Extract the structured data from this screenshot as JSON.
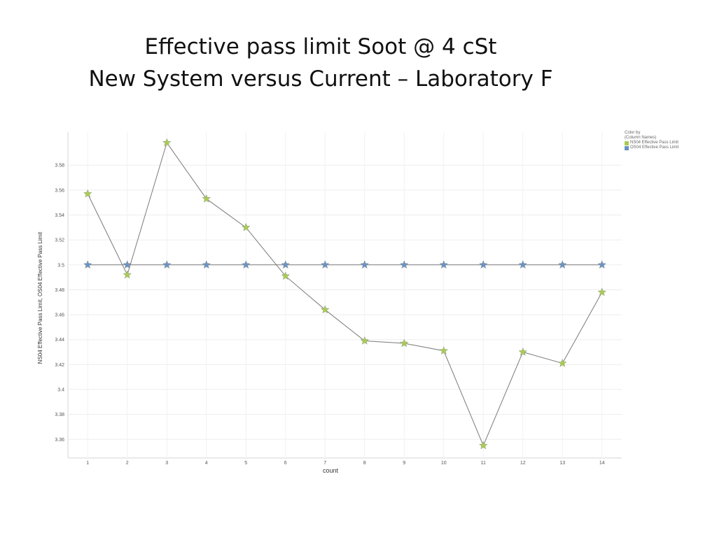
{
  "slide": {
    "title_line1": "Effective pass limit Soot @ 4 cSt",
    "title_line2": "New System versus Current – Laboratory F"
  },
  "legend": {
    "heading_line1": "Color by",
    "heading_line2": "(Column Names)"
  },
  "chart_data": {
    "type": "line",
    "xlabel": "count",
    "ylabel": "NS04 Effective Pass Limit, OS04 Effective Pass Limit",
    "x": [
      1,
      2,
      3,
      4,
      5,
      6,
      7,
      8,
      9,
      10,
      11,
      12,
      13,
      14
    ],
    "xlim": [
      0.5,
      14.5
    ],
    "ylim": [
      3.345,
      3.6065
    ],
    "yticks": [
      3.36,
      3.38,
      3.4,
      3.42,
      3.44,
      3.46,
      3.48,
      3.5,
      3.52,
      3.54,
      3.56,
      3.58
    ],
    "ytick_labels": [
      "3.36",
      "3.38",
      "3.4",
      "3.42",
      "3.44",
      "3.46",
      "3.48",
      "3.5",
      "3.52",
      "3.54",
      "3.56",
      "3.58"
    ],
    "grid": true,
    "legend_position": "top-right",
    "marker": "star",
    "series": [
      {
        "name": "NS04 Effective Pass Limit",
        "color": "#a8cc52",
        "values": [
          3.557,
          3.492,
          3.598,
          3.553,
          3.53,
          3.491,
          3.464,
          3.439,
          3.437,
          3.431,
          3.355,
          3.43,
          3.421,
          3.478
        ]
      },
      {
        "name": "OS04 Effective Pass Limit",
        "color": "#6a93c2",
        "values": [
          3.5,
          3.5,
          3.5,
          3.5,
          3.5,
          3.5,
          3.5,
          3.5,
          3.5,
          3.5,
          3.5,
          3.5,
          3.5,
          3.5
        ]
      }
    ]
  }
}
